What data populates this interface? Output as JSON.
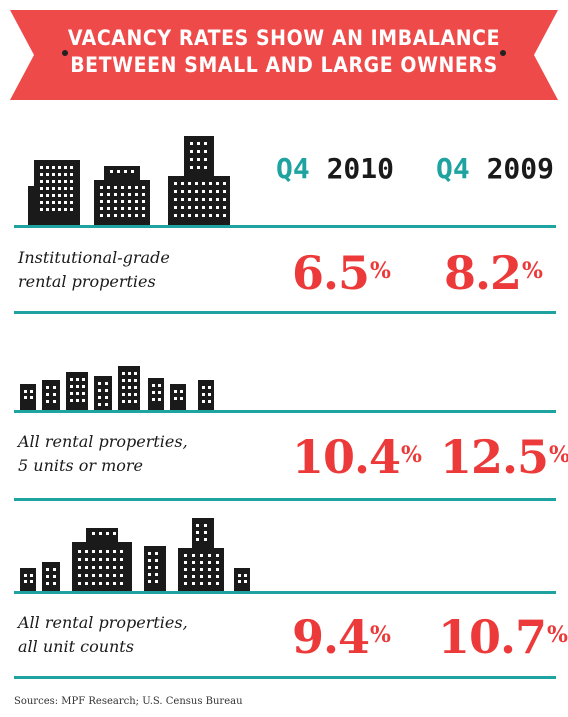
{
  "title": {
    "line1": "VACANCY RATES SHOW AN IMBALANCE",
    "line2": "BETWEEN SMALL AND LARGE OWNERS"
  },
  "columns": [
    {
      "quarter": "Q4",
      "year": "2010"
    },
    {
      "quarter": "Q4",
      "year": "2009"
    }
  ],
  "rows": [
    {
      "label_line1": "Institutional-grade",
      "label_line2": "rental properties",
      "values": [
        {
          "num": "6.5",
          "unit": "%"
        },
        {
          "num": "8.2",
          "unit": "%"
        }
      ]
    },
    {
      "label_line1": "All rental properties,",
      "label_line2": "5 units or more",
      "values": [
        {
          "num": "10.4",
          "unit": "%"
        },
        {
          "num": "12.5",
          "unit": "%"
        }
      ]
    },
    {
      "label_line1": "All rental properties,",
      "label_line2": "all unit counts",
      "values": [
        {
          "num": "9.4",
          "unit": "%"
        },
        {
          "num": "10.7",
          "unit": "%"
        }
      ]
    }
  ],
  "source": "Sources: MPF Research; U.S. Census Bureau",
  "icons": [
    "large-buildings-icon",
    "medium-buildings-icon",
    "mixed-buildings-icon"
  ],
  "colors": {
    "banner": "#ef4a4a",
    "accent_teal": "#1fa3a0",
    "value_red": "#ec3a3a",
    "building": "#1a1a1a"
  }
}
